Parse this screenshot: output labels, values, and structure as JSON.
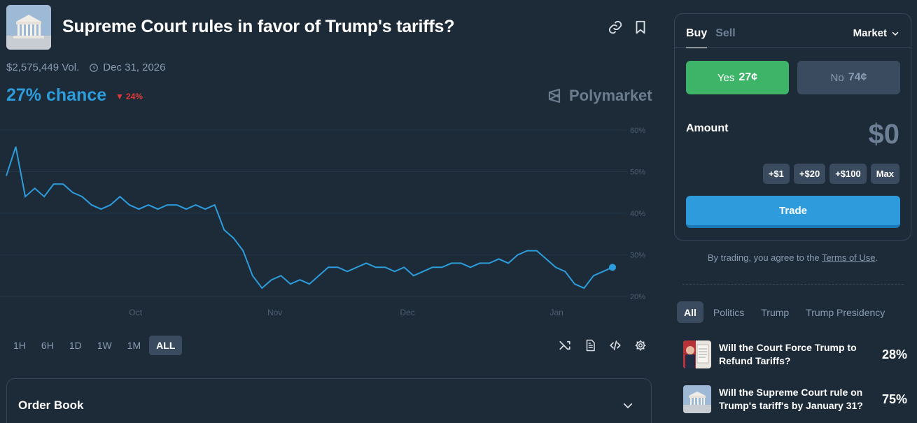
{
  "market": {
    "title": "Supreme Court rules in favor of Trump's tariffs?",
    "volume": "$2,575,449 Vol.",
    "end_date": "Dec 31, 2026",
    "chance": "27% chance",
    "delta": "24%",
    "brand": "Polymarket"
  },
  "icons": {
    "link": "link-icon",
    "bookmark": "bookmark-icon",
    "clock": "clock-icon",
    "shuffle": "shuffle-icon",
    "document": "document-icon",
    "code": "code-icon",
    "settings": "gear-icon"
  },
  "chart_data": {
    "type": "line",
    "title": "",
    "xlabel": "",
    "ylabel": "",
    "x_tick_labels": [
      "Oct",
      "Nov",
      "Dec",
      "Jan"
    ],
    "y_tick_labels": [
      "60%",
      "50%",
      "40%",
      "30%",
      "20%"
    ],
    "ylim": [
      20,
      60
    ],
    "grid": true,
    "series": [
      {
        "name": "Yes",
        "color": "#2d9cdb",
        "x": [
          0,
          2,
          4,
          6,
          8,
          10,
          12,
          14,
          16,
          18,
          20,
          22,
          24,
          26,
          28,
          30,
          32,
          34,
          36,
          38,
          40,
          42,
          44,
          45,
          46,
          48,
          50,
          52,
          54,
          56,
          58,
          60,
          62,
          64,
          66,
          68,
          70,
          72,
          74,
          76,
          78,
          80,
          82,
          84,
          86,
          88,
          90,
          92,
          94,
          96,
          98,
          100,
          102,
          104,
          106,
          108,
          110,
          112,
          114,
          116,
          118,
          120,
          122,
          124,
          126,
          128
        ],
        "values": [
          49,
          56,
          44,
          46,
          44,
          47,
          47,
          45,
          44,
          42,
          41,
          42,
          44,
          42,
          41,
          42,
          41,
          42,
          42,
          41,
          42,
          41,
          42,
          39,
          36,
          34,
          31,
          25,
          22,
          24,
          25,
          23,
          24,
          23,
          25,
          27,
          27,
          26,
          27,
          28,
          27,
          27,
          26,
          27,
          25,
          26,
          27,
          27,
          28,
          28,
          27,
          28,
          28,
          29,
          28,
          30,
          31,
          31,
          29,
          27,
          26,
          23,
          22,
          25,
          26,
          27
        ]
      }
    ]
  },
  "time_ranges": [
    "1H",
    "6H",
    "1D",
    "1W",
    "1M",
    "ALL"
  ],
  "active_range": "ALL",
  "order_book": {
    "label": "Order Book"
  },
  "trade_panel": {
    "tab_buy": "Buy",
    "tab_sell": "Sell",
    "order_type": "Market",
    "yes_label": "Yes",
    "yes_price": "27¢",
    "no_label": "No",
    "no_price": "74¢",
    "amount_label": "Amount",
    "amount_value": "$0",
    "quick_amounts": [
      "+$1",
      "+$20",
      "+$100",
      "Max"
    ],
    "trade_button": "Trade",
    "colors": {
      "yes": "#3db468",
      "trade": "#2e9bdc"
    }
  },
  "terms": {
    "prefix": "By trading, you agree to the ",
    "link": "Terms of Use",
    "suffix": "."
  },
  "categories": [
    "All",
    "Politics",
    "Trump",
    "Trump Presidency"
  ],
  "related": [
    {
      "title": "Will the Court Force Trump to Refund Tariffs?",
      "percent": "28%"
    },
    {
      "title": "Will the Supreme Court rule on Trump's tariff's by January 31?",
      "percent": "75%"
    }
  ]
}
